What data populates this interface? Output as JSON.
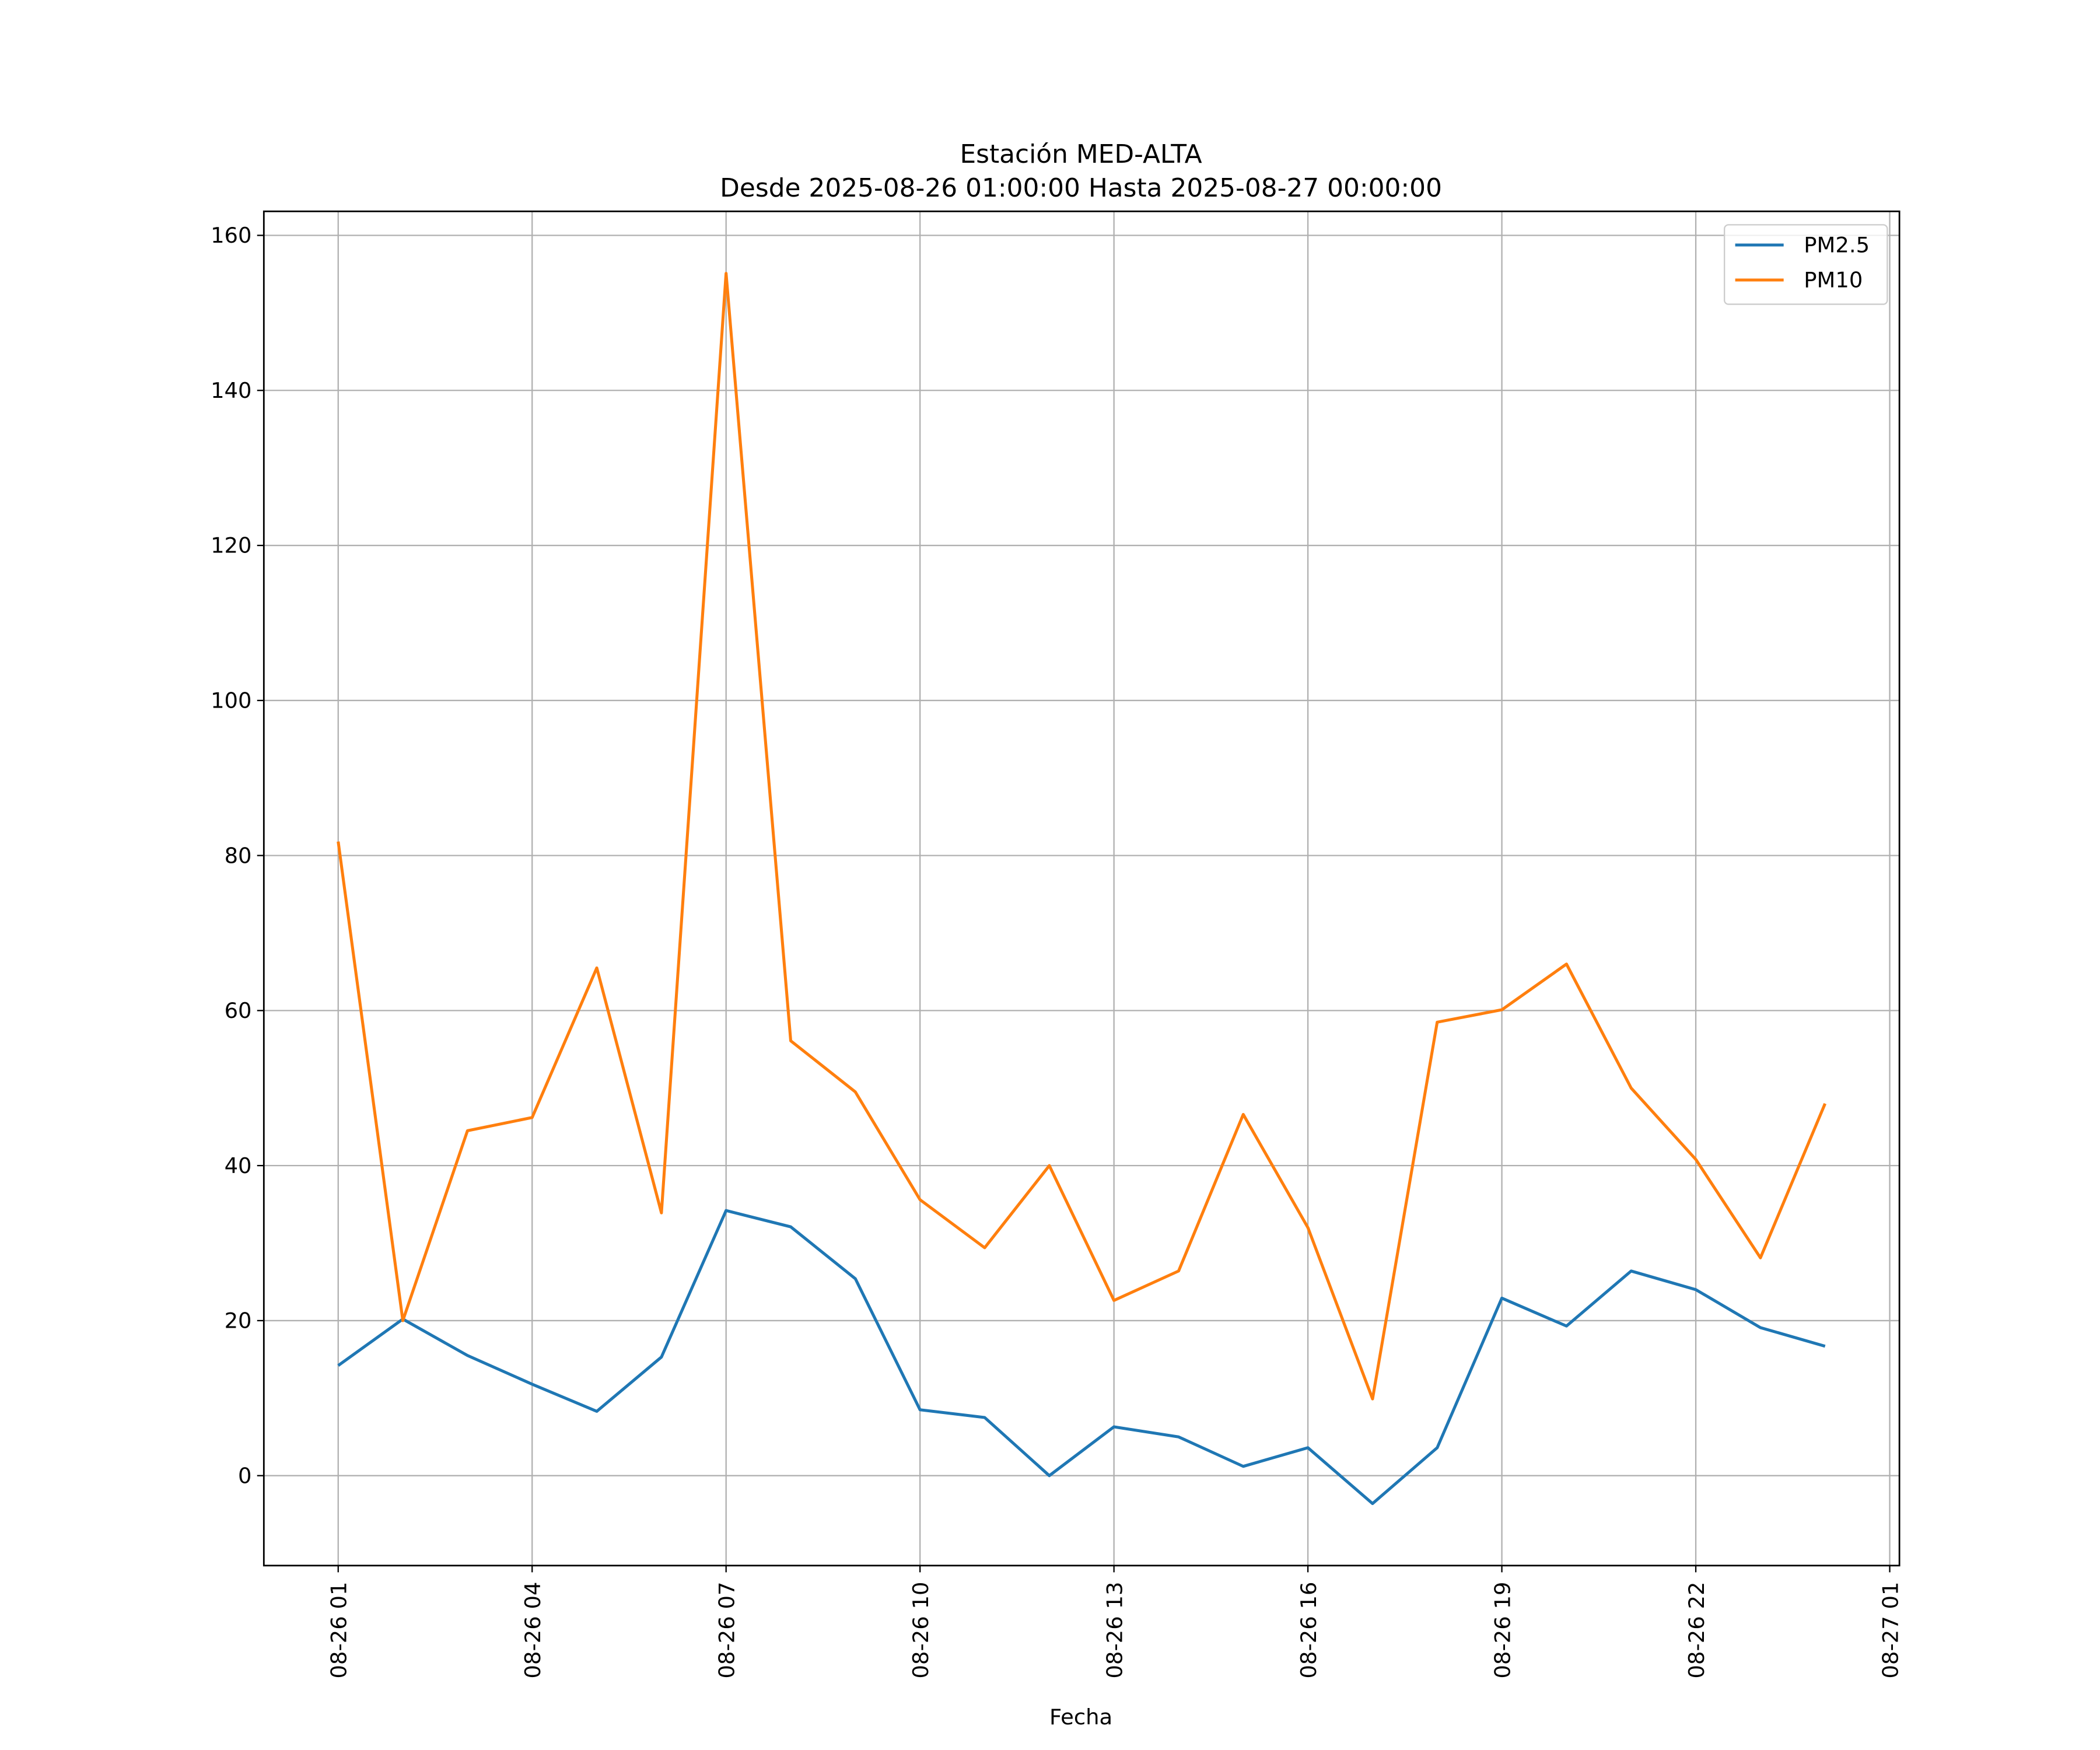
{
  "chart_data": {
    "type": "line",
    "title": "Estación MED-ALTA",
    "subtitle": "Desde 2025-08-26 01:00:00 Hasta 2025-08-27 00:00:00",
    "xlabel": "Fecha",
    "ylabel": "",
    "x_hours_from_start": [
      0,
      1,
      2,
      3,
      4,
      5,
      6,
      7,
      8,
      9,
      10,
      11,
      12,
      13,
      14,
      15,
      16,
      17,
      18,
      19,
      20,
      21,
      22,
      23
    ],
    "xlim_hours": [
      -1.15,
      24.15
    ],
    "xticks": [
      {
        "hour": 0,
        "label": "08-26 01"
      },
      {
        "hour": 3,
        "label": "08-26 04"
      },
      {
        "hour": 6,
        "label": "08-26 07"
      },
      {
        "hour": 9,
        "label": "08-26 10"
      },
      {
        "hour": 12,
        "label": "08-26 13"
      },
      {
        "hour": 15,
        "label": "08-26 16"
      },
      {
        "hour": 18,
        "label": "08-26 19"
      },
      {
        "hour": 21,
        "label": "08-26 22"
      },
      {
        "hour": 24,
        "label": "08-27 01"
      }
    ],
    "ylim": [
      -11.6,
      163.1
    ],
    "yticks": [
      0,
      20,
      40,
      60,
      80,
      100,
      120,
      140,
      160
    ],
    "grid": true,
    "legend_position": "top-right",
    "series": [
      {
        "name": "PM2.5",
        "color": "#1f77b4",
        "values": [
          14.2,
          20.2,
          15.5,
          11.8,
          8.3,
          15.3,
          34.2,
          32.1,
          25.4,
          8.5,
          7.5,
          0.0,
          6.3,
          5.0,
          1.2,
          3.6,
          -3.6,
          3.6,
          22.9,
          19.3,
          26.4,
          24.0,
          19.1,
          16.7
        ]
      },
      {
        "name": "PM10",
        "color": "#ff7f0e",
        "values": [
          81.8,
          20.0,
          44.5,
          46.2,
          65.5,
          33.9,
          155.1,
          56.1,
          49.5,
          35.6,
          29.4,
          40.0,
          22.6,
          26.4,
          46.6,
          32.0,
          9.9,
          58.5,
          60.1,
          66.0,
          50.0,
          40.8,
          28.1,
          48.0
        ]
      }
    ]
  }
}
